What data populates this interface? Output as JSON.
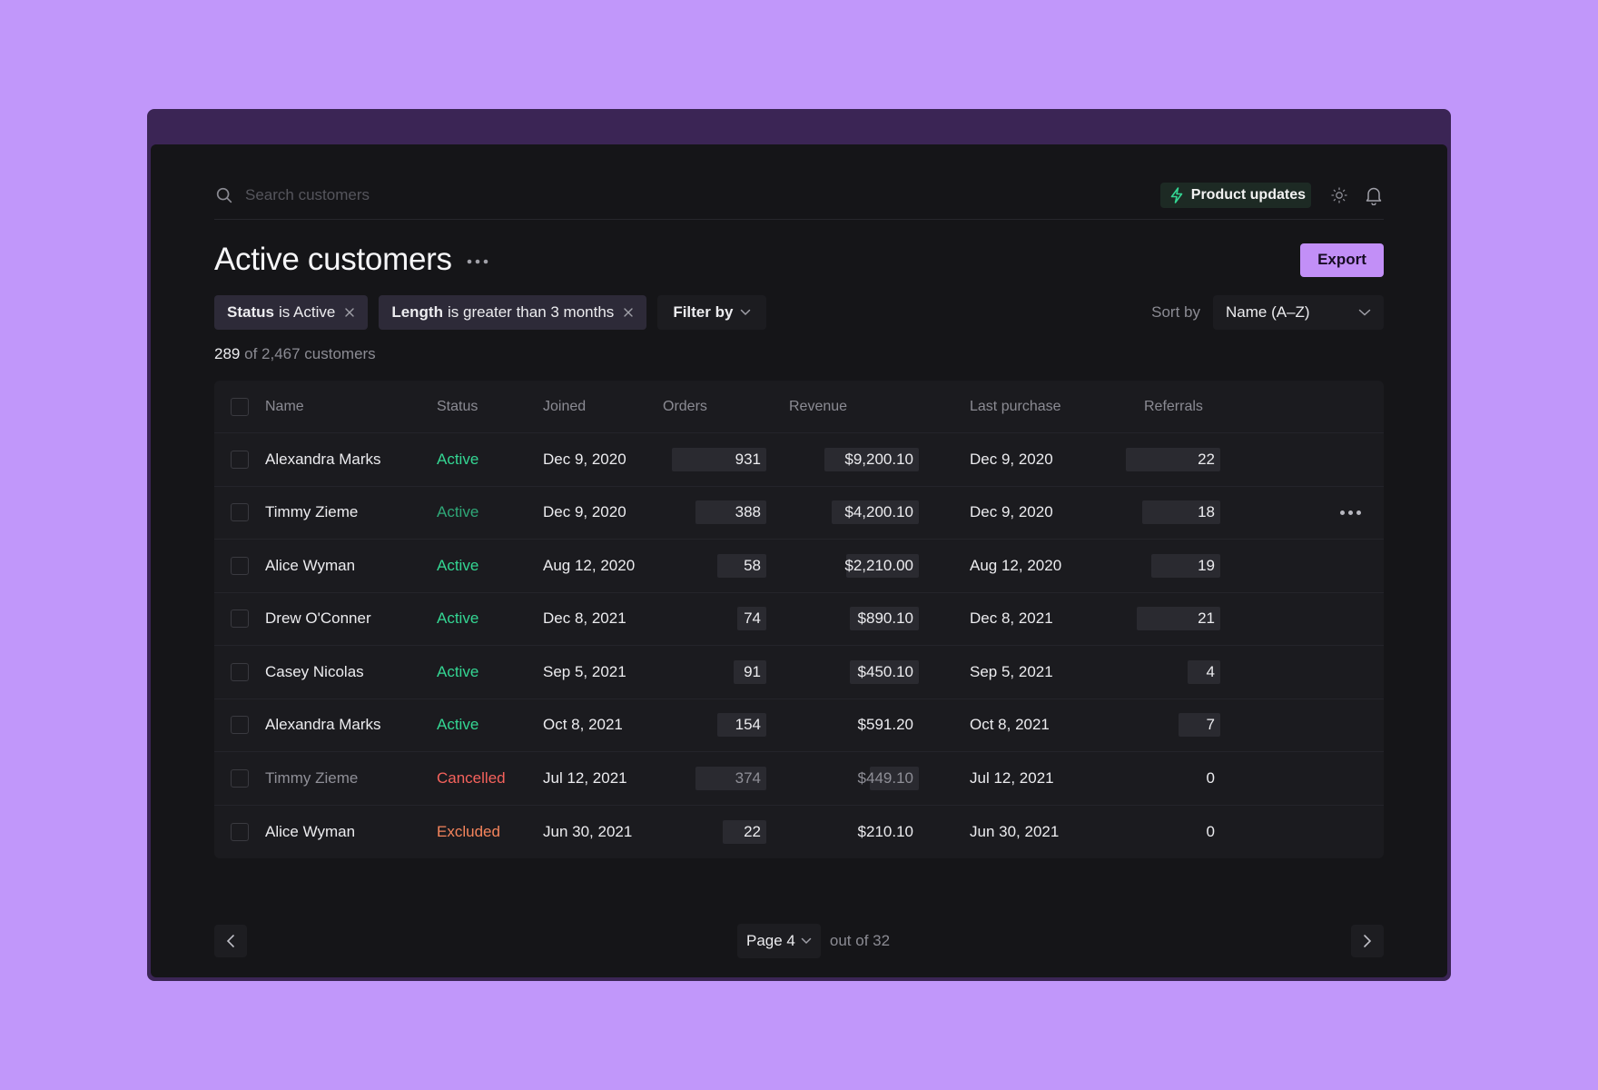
{
  "search": {
    "placeholder": "Search customers"
  },
  "header": {
    "product_updates_label": "Product updates"
  },
  "page": {
    "title": "Active customers",
    "export_label": "Export",
    "count_shown": "289",
    "count_rest": "of 2,467 customers"
  },
  "filters": [
    {
      "key": "Status",
      "rest": "is Active"
    },
    {
      "key": "Length",
      "rest": "is greater than 3 months"
    }
  ],
  "filter_by_label": "Filter by",
  "sort": {
    "label": "Sort by",
    "value": "Name (A–Z)"
  },
  "table": {
    "columns": [
      "Name",
      "Status",
      "Joined",
      "Orders",
      "Revenue",
      "Last purchase",
      "Referrals"
    ],
    "rows": [
      {
        "name": "Alexandra Marks",
        "status": "Active",
        "joined": "Dec 9, 2020",
        "orders": "931",
        "revenue": "$9,200.10",
        "last": "Dec 9, 2020",
        "referrals": "22"
      },
      {
        "name": "Timmy Zieme",
        "status": "Active",
        "joined": "Dec 9, 2020",
        "orders": "388",
        "revenue": "$4,200.10",
        "last": "Dec 9, 2020",
        "referrals": "18"
      },
      {
        "name": "Alice Wyman",
        "status": "Active",
        "joined": "Aug 12, 2020",
        "orders": "58",
        "revenue": "$2,210.00",
        "last": "Aug 12, 2020",
        "referrals": "19"
      },
      {
        "name": "Drew O'Conner",
        "status": "Active",
        "joined": "Dec 8, 2021",
        "orders": "74",
        "revenue": "$890.10",
        "last": "Dec 8, 2021",
        "referrals": "21"
      },
      {
        "name": "Casey Nicolas",
        "status": "Active",
        "joined": "Sep 5, 2021",
        "orders": "91",
        "revenue": "$450.10",
        "last": "Sep 5, 2021",
        "referrals": "4"
      },
      {
        "name": "Alexandra Marks",
        "status": "Active",
        "joined": "Oct 8, 2021",
        "orders": "154",
        "revenue": "$591.20",
        "last": "Oct 8, 2021",
        "referrals": "7"
      },
      {
        "name": "Timmy Zieme",
        "status": "Cancelled",
        "joined": "Jul 12, 2021",
        "orders": "374",
        "revenue": "$449.10",
        "last": "Jul 12, 2021",
        "referrals": "0"
      },
      {
        "name": "Alice Wyman",
        "status": "Excluded",
        "joined": "Jun 30, 2021",
        "orders": "22",
        "revenue": "$210.10",
        "last": "Jun 30, 2021",
        "referrals": "0"
      }
    ]
  },
  "pagination": {
    "page_label": "Page 4",
    "total_label": "out of 32"
  },
  "colors": {
    "background": "#c197fa",
    "panel": "#151518",
    "accent": "#c28ff7",
    "active": "#34d693",
    "cancelled": "#f5625c",
    "excluded": "#f5845c"
  },
  "icons": [
    "search-icon",
    "lightning-icon",
    "sun-icon",
    "bell-icon",
    "more-icon",
    "close-icon",
    "chevron-down-icon",
    "chevron-left-icon",
    "chevron-right-icon"
  ]
}
